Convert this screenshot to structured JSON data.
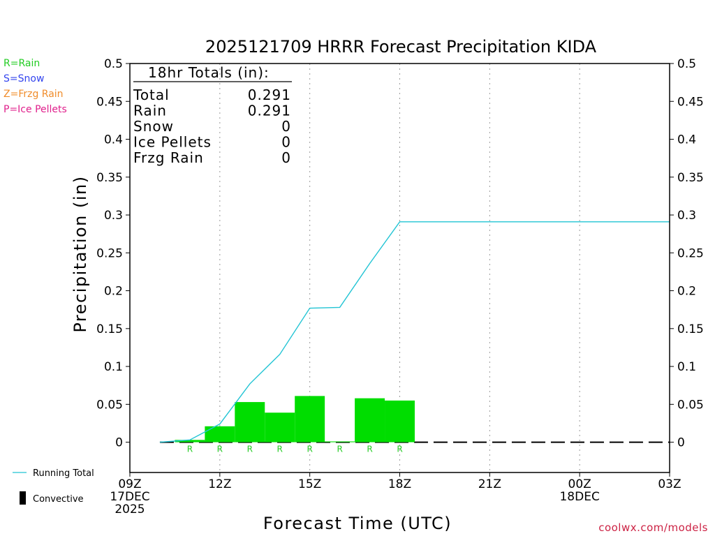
{
  "title": "2025121709 HRRR Forecast Precipitation KIDA",
  "ptype_legend": [
    {
      "text": "R=Rain",
      "color": "#22cc22"
    },
    {
      "text": "S=Snow",
      "color": "#3344ee"
    },
    {
      "text": "Z=Frzg Rain",
      "color": "#f08c2a"
    },
    {
      "text": "P=Ice Pellets",
      "color": "#e0208c"
    }
  ],
  "totals": {
    "header": "18hr Totals (in):",
    "rows": [
      {
        "label": "Total",
        "value": "0.291"
      },
      {
        "label": "Rain",
        "value": "0.291"
      },
      {
        "label": "Snow",
        "value": "0"
      },
      {
        "label": "Ice Pellets",
        "value": "0"
      },
      {
        "label": "Frzg Rain",
        "value": "0"
      }
    ]
  },
  "bottom_legend": {
    "running_total": "Running Total",
    "convective": "Convective"
  },
  "credit": "coolwx.com/models",
  "colors": {
    "bar": "#00dd00",
    "running_total": "#22c4d4",
    "ptype_letter": "#22cc22",
    "credit": "#cc2244"
  },
  "chart_data": {
    "type": "bar",
    "title": "2025121709 HRRR Forecast Precipitation KIDA",
    "xlabel": "Forecast Time (UTC)",
    "ylabel": "Precipitation (in)",
    "ylim": [
      -0.04,
      0.5
    ],
    "xlim_hours": [
      0,
      18
    ],
    "y_ticks": [
      "0",
      "0.05",
      "0.1",
      "0.15",
      "0.2",
      "0.25",
      "0.3",
      "0.35",
      "0.4",
      "0.45",
      "0.5"
    ],
    "y_tick_values": [
      0,
      0.05,
      0.1,
      0.15,
      0.2,
      0.25,
      0.3,
      0.35,
      0.4,
      0.45,
      0.5
    ],
    "x_ticks": [
      {
        "hour": 0,
        "lines": [
          "09Z",
          "17DEC",
          "2025"
        ]
      },
      {
        "hour": 3,
        "lines": [
          "12Z"
        ]
      },
      {
        "hour": 6,
        "lines": [
          "15Z"
        ]
      },
      {
        "hour": 9,
        "lines": [
          "18Z"
        ]
      },
      {
        "hour": 12,
        "lines": [
          "21Z"
        ]
      },
      {
        "hour": 15,
        "lines": [
          "00Z",
          "18DEC"
        ]
      },
      {
        "hour": 18,
        "lines": [
          "03Z"
        ]
      }
    ],
    "gridlines": "vertical dotted at 3-hour ticks",
    "bars": {
      "name": "Hourly precipitation (Rain)",
      "start_hour": [
        1.5,
        2.5,
        3.5,
        4.5,
        5.5,
        6.5,
        7.5,
        8.5
      ],
      "values": [
        0.003,
        0.021,
        0.053,
        0.039,
        0.061,
        0.001,
        0.058,
        0.055
      ],
      "ptype": [
        "R",
        "R",
        "R",
        "R",
        "R",
        "R",
        "R",
        "R"
      ],
      "width_hours": 1
    },
    "running_total": {
      "name": "Running Total",
      "x_hours": [
        1,
        2,
        3,
        4,
        5,
        6,
        7,
        8,
        9,
        18
      ],
      "values": [
        0,
        0.003,
        0.024,
        0.077,
        0.116,
        0.177,
        0.178,
        0.236,
        0.291,
        0.291
      ]
    },
    "baseline_dashes": "black dashed line at 0 from hour 1 to 18"
  }
}
